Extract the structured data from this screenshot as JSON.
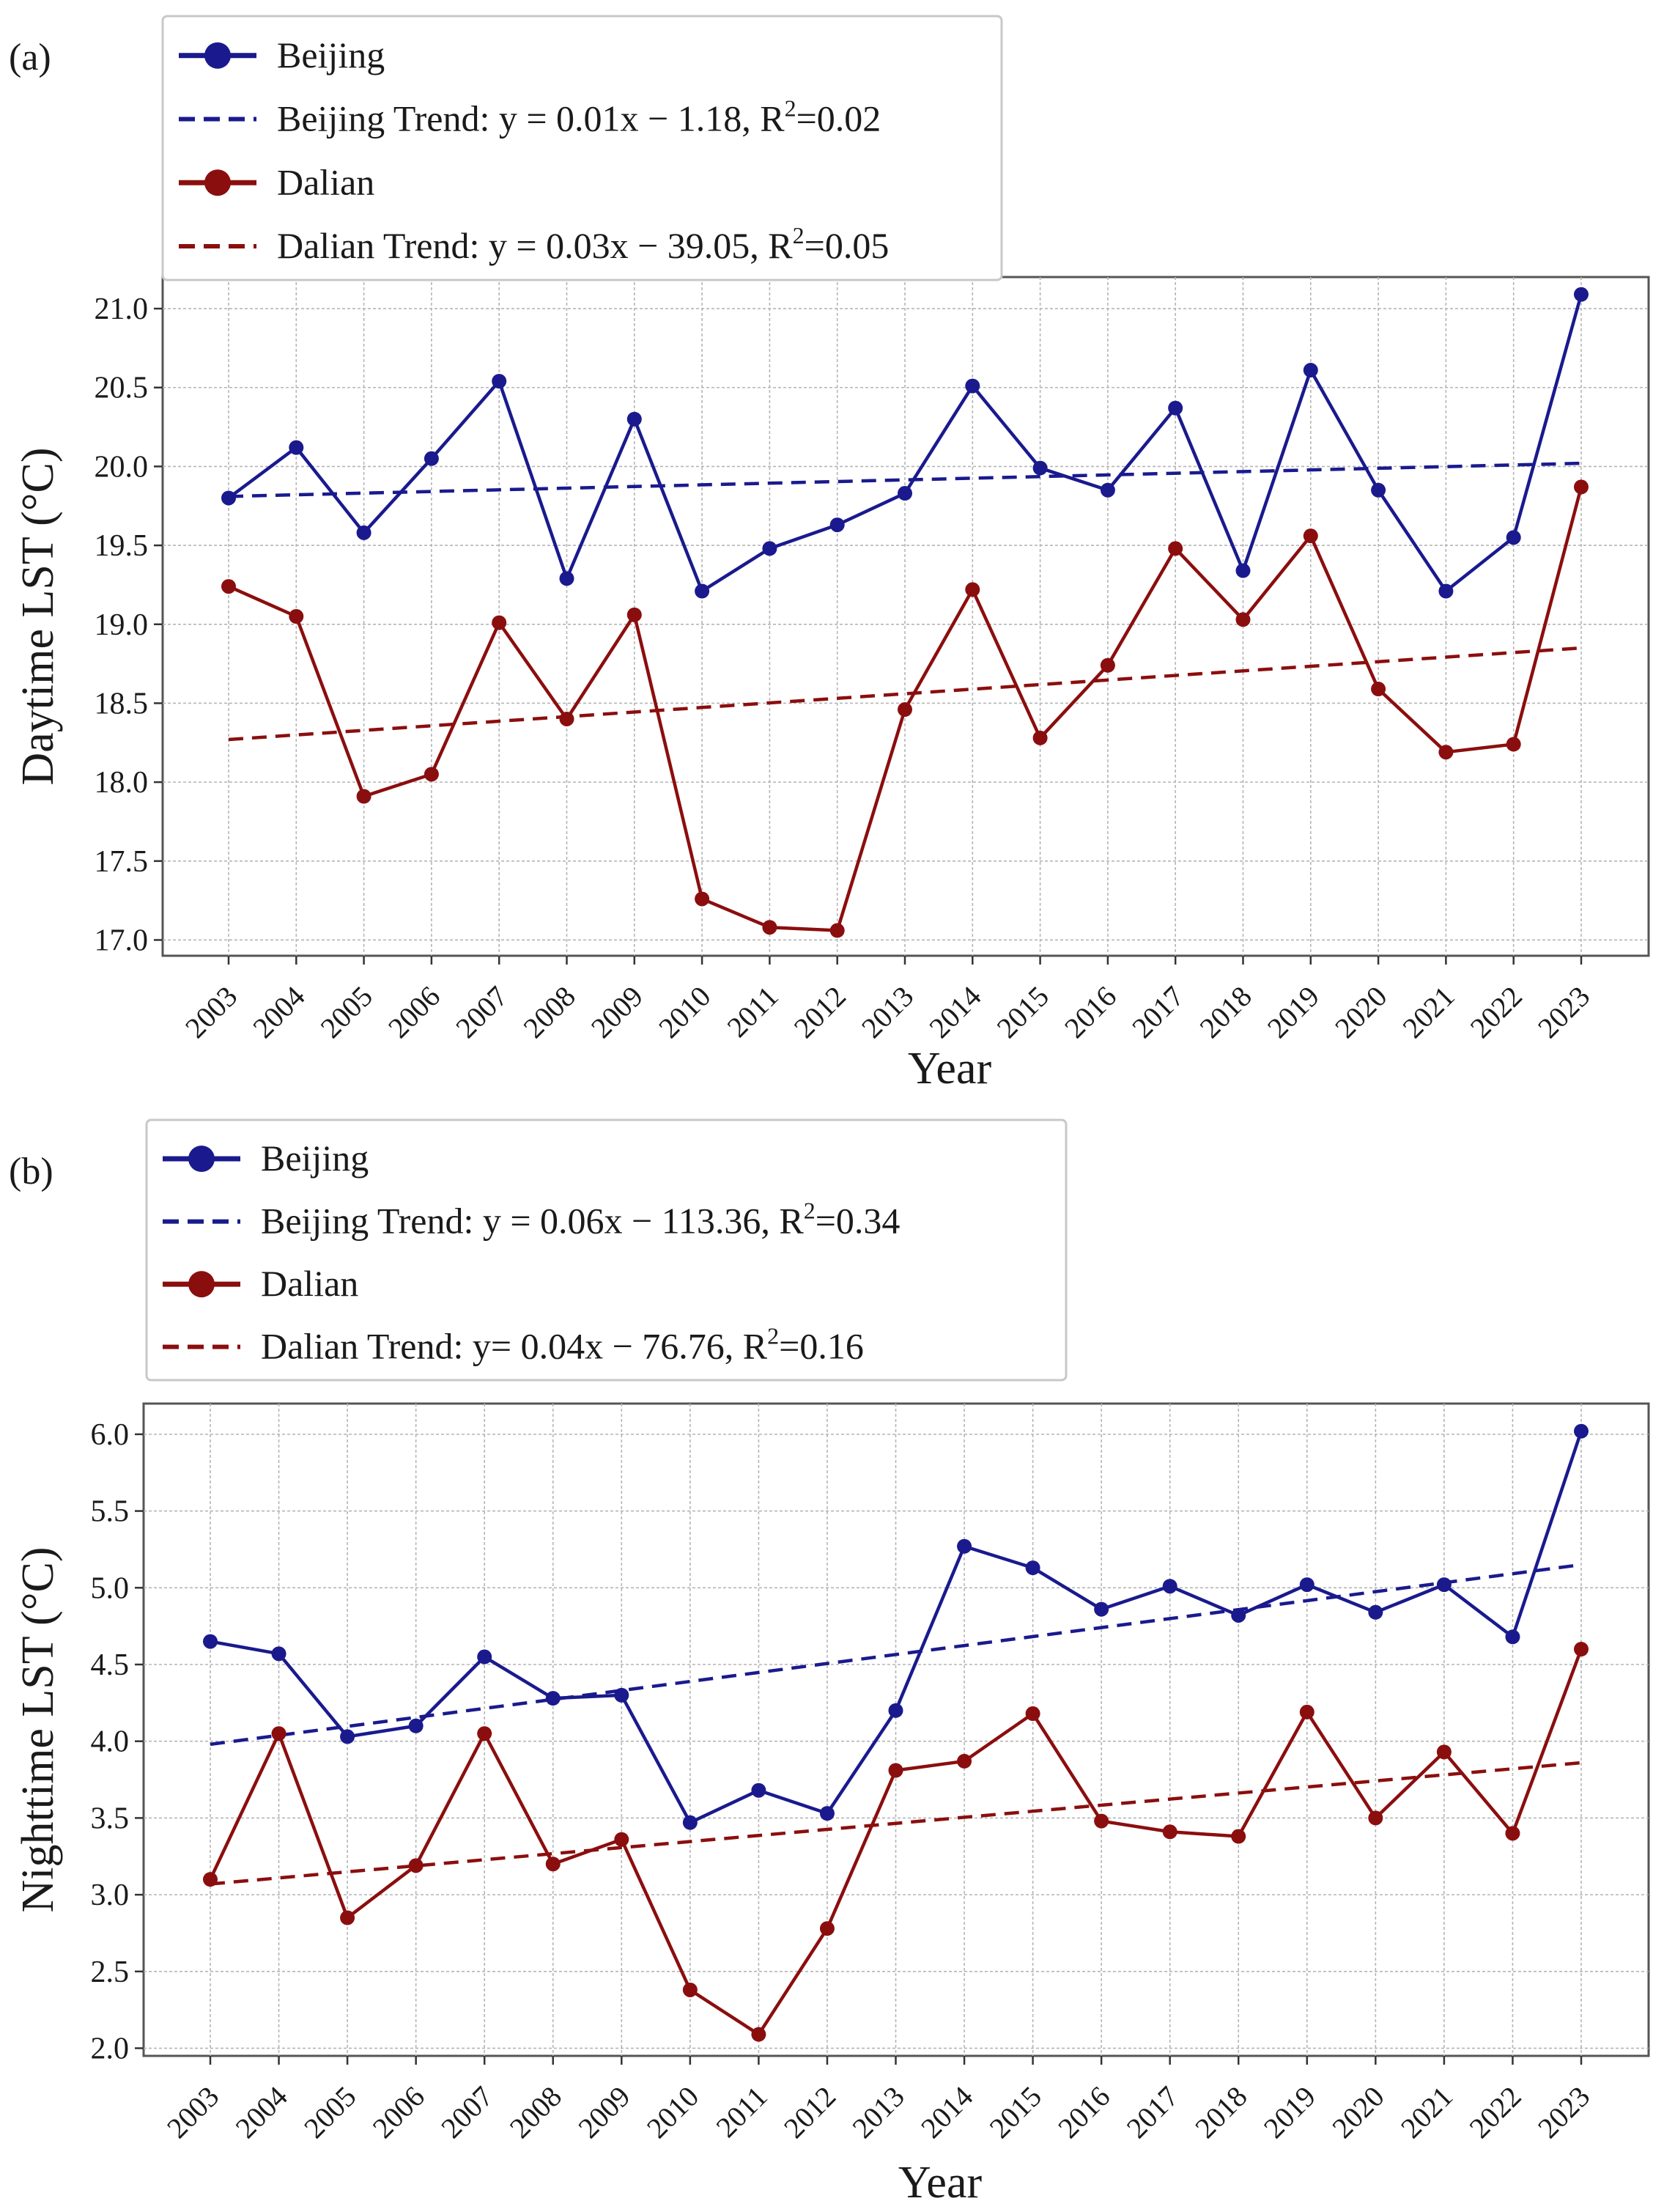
{
  "chart_data": [
    {
      "panel_label": "(a)",
      "type": "line",
      "xlabel": "Year",
      "ylabel": "Daytime LST (°C)",
      "ylim": [
        16.9,
        21.2
      ],
      "yticks": [
        "17.0",
        "17.5",
        "18.0",
        "18.5",
        "19.0",
        "19.5",
        "20.0",
        "20.5",
        "21.0"
      ],
      "grid": true,
      "legend_position": "top-left, above plot",
      "categories": [
        "2003",
        "2004",
        "2005",
        "2006",
        "2007",
        "2008",
        "2009",
        "2010",
        "2011",
        "2012",
        "2013",
        "2014",
        "2015",
        "2016",
        "2017",
        "2018",
        "2019",
        "2020",
        "2021",
        "2022",
        "2023"
      ],
      "series": [
        {
          "name": "Beijing",
          "color": "#1a1a8e",
          "values": [
            19.8,
            20.12,
            19.58,
            20.05,
            20.54,
            19.29,
            20.3,
            19.21,
            19.48,
            19.63,
            19.83,
            20.51,
            19.99,
            19.85,
            20.37,
            19.34,
            20.61,
            19.85,
            19.21,
            19.55,
            21.09
          ]
        },
        {
          "name": "Dalian",
          "color": "#8b0e0e",
          "values": [
            19.24,
            19.05,
            17.91,
            18.05,
            19.01,
            18.4,
            19.06,
            17.26,
            17.08,
            17.06,
            18.46,
            19.22,
            18.28,
            18.74,
            19.48,
            19.03,
            19.56,
            18.59,
            18.19,
            18.24,
            19.87
          ]
        }
      ],
      "trends": [
        {
          "name": "Beijing Trend",
          "label_main": "Beijing Trend: y = 0.01x − 1.18, R",
          "label_sup": "2",
          "label_end": "=0.02",
          "color": "#1a1a8e",
          "start": 19.81,
          "end": 20.02
        },
        {
          "name": "Dalian Trend",
          "label_main": "Dalian Trend: y = 0.03x − 39.05, R",
          "label_sup": "2",
          "label_end": "=0.05",
          "color": "#8b0e0e",
          "start": 18.27,
          "end": 18.85
        }
      ]
    },
    {
      "panel_label": "(b)",
      "type": "line",
      "xlabel": "Year",
      "ylabel": "Nighttime LST (°C)",
      "ylim": [
        1.95,
        6.2
      ],
      "yticks": [
        "2.0",
        "2.5",
        "3.0",
        "3.5",
        "4.0",
        "4.5",
        "5.0",
        "5.5",
        "6.0"
      ],
      "grid": true,
      "legend_position": "top-left, above plot",
      "categories": [
        "2003",
        "2004",
        "2005",
        "2006",
        "2007",
        "2008",
        "2009",
        "2010",
        "2011",
        "2012",
        "2013",
        "2014",
        "2015",
        "2016",
        "2017",
        "2018",
        "2019",
        "2020",
        "2021",
        "2022",
        "2023"
      ],
      "series": [
        {
          "name": "Beijing",
          "color": "#1a1a8e",
          "values": [
            4.65,
            4.57,
            4.03,
            4.1,
            4.55,
            4.28,
            4.3,
            3.47,
            3.68,
            3.53,
            4.2,
            5.27,
            5.13,
            4.86,
            5.01,
            4.82,
            5.02,
            4.84,
            5.02,
            4.68,
            6.02
          ]
        },
        {
          "name": "Dalian",
          "color": "#8b0e0e",
          "values": [
            3.1,
            4.05,
            2.85,
            3.19,
            4.05,
            3.2,
            3.36,
            2.38,
            2.09,
            2.78,
            3.81,
            3.87,
            4.18,
            3.48,
            3.41,
            3.38,
            4.19,
            3.5,
            3.93,
            3.4,
            4.6
          ]
        }
      ],
      "trends": [
        {
          "name": "Beijing Trend",
          "label_main": "Beijing Trend: y = 0.06x − 113.36, R",
          "label_sup": "2",
          "label_end": "=0.34",
          "color": "#1a1a8e",
          "start": 3.98,
          "end": 5.15
        },
        {
          "name": "Dalian Trend",
          "label_main": "Dalian Trend: y= 0.04x − 76.76, R",
          "label_sup": "2",
          "label_end": "=0.16",
          "color": "#8b0e0e",
          "start": 3.07,
          "end": 3.86
        }
      ]
    }
  ]
}
